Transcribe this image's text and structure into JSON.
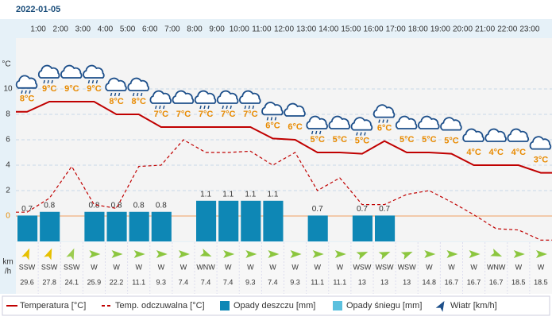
{
  "chart_data": {
    "type": "weather",
    "title": "2022-01-05",
    "hour_marks": [
      "1:00",
      "2:00",
      "3:00",
      "4:00",
      "5:00",
      "6:00",
      "7:00",
      "8:00",
      "9:00",
      "10:00",
      "11:00",
      "12:00",
      "13:00",
      "14:00",
      "15:00",
      "16:00",
      "17:00",
      "18:00",
      "19:00",
      "20:00",
      "21:00",
      "22:00",
      "23:00"
    ],
    "y_label": "°C",
    "ylim": [
      -2,
      14
    ],
    "yticks": [
      0,
      2,
      4,
      6,
      8,
      10
    ],
    "y2lim": [
      0,
      5.5
    ],
    "grid": true,
    "series": [
      {
        "name": "Temperatura [°C]",
        "color": "#c00000",
        "values": [
          8.2,
          9.0,
          9.0,
          9.0,
          8.0,
          8.0,
          7.0,
          7.0,
          7.0,
          7.0,
          7.0,
          6.1,
          6.0,
          5.0,
          5.0,
          4.9,
          5.9,
          5.0,
          5.0,
          4.9,
          4.0,
          4.0,
          4.0,
          3.4
        ],
        "value_labels": [
          "8°C",
          "9°C",
          "9°C",
          "9°C",
          "8°C",
          "8°C",
          "7°C",
          "7°C",
          "7°C",
          "7°C",
          "7°C",
          "6°C",
          "6°C",
          "5°C",
          "5°C",
          "5°C",
          "6°C",
          "5°C",
          "5°C",
          "5°C",
          "4°C",
          "4°C",
          "4°C",
          "3°C"
        ],
        "icons": [
          "rain",
          "rain",
          "cloud",
          "rain",
          "rain",
          "rain",
          "rain",
          "cloud",
          "rain",
          "rain",
          "rain",
          "rain",
          "cloud",
          "rain",
          "cloud",
          "rain",
          "rain",
          "cloud",
          "cloud",
          "cloud",
          "cloud",
          "cloud",
          "cloud",
          "cloud"
        ]
      },
      {
        "name": "Temp. odczuwalna [°C]",
        "color": "#c00000",
        "dashed": true,
        "values": [
          0.3,
          1.4,
          3.9,
          0.9,
          0.6,
          3.9,
          4.0,
          6.0,
          5.0,
          5.0,
          5.1,
          4.0,
          5.0,
          2.0,
          3.0,
          0.9,
          0.9,
          1.7,
          2.0,
          1.1,
          0.1,
          -1.0,
          -1.1,
          -1.9
        ]
      },
      {
        "name": "Opady deszczu [mm]",
        "color": "#0e87b5",
        "axis": "y2",
        "values": [
          0.7,
          0.8,
          0,
          0.8,
          0.8,
          0.8,
          0.8,
          0,
          1.1,
          1.1,
          1.1,
          1.1,
          0,
          0.7,
          0,
          0.7,
          0.7,
          0,
          0,
          0,
          0,
          0,
          0,
          0
        ]
      },
      {
        "name": "Opady śniegu [mm]",
        "color": "#5bc0de",
        "axis": "y2",
        "values": [
          0,
          0,
          0,
          0,
          0,
          0,
          0,
          0,
          0,
          0,
          0,
          0,
          0,
          0,
          0,
          0,
          0,
          0,
          0,
          0,
          0,
          0,
          0,
          0
        ]
      }
    ],
    "wind": {
      "name": "Wiatr [km/h]",
      "unit_lines": [
        "km",
        "/h"
      ],
      "directions": [
        "SSW",
        "SSW",
        "SSW",
        "W",
        "W",
        "W",
        "W",
        "W",
        "WNW",
        "W",
        "W",
        "W",
        "W",
        "W",
        "W",
        "WSW",
        "WSW",
        "WSW",
        "W",
        "W",
        "W",
        "WNW",
        "W",
        "W"
      ],
      "speeds": [
        29.6,
        27.8,
        24.1,
        25.9,
        22.2,
        11.1,
        9.3,
        7.4,
        7.4,
        7.4,
        9.3,
        7.4,
        9.3,
        11.1,
        11.1,
        13,
        13,
        13,
        14.8,
        16.7,
        16.7,
        16.7,
        18.5,
        18.5
      ],
      "colors": [
        "#e6c000",
        "#e6c000",
        "#9ccc50",
        "#8cc63f",
        "#8cc63f",
        "#8cc63f",
        "#8cc63f",
        "#8cc63f",
        "#8cc63f",
        "#8cc63f",
        "#8cc63f",
        "#8cc63f",
        "#8cc63f",
        "#8cc63f",
        "#8cc63f",
        "#8cc63f",
        "#8cc63f",
        "#8cc63f",
        "#8cc63f",
        "#8cc63f",
        "#8cc63f",
        "#8cc63f",
        "#8cc63f",
        "#8cc63f"
      ]
    }
  }
}
